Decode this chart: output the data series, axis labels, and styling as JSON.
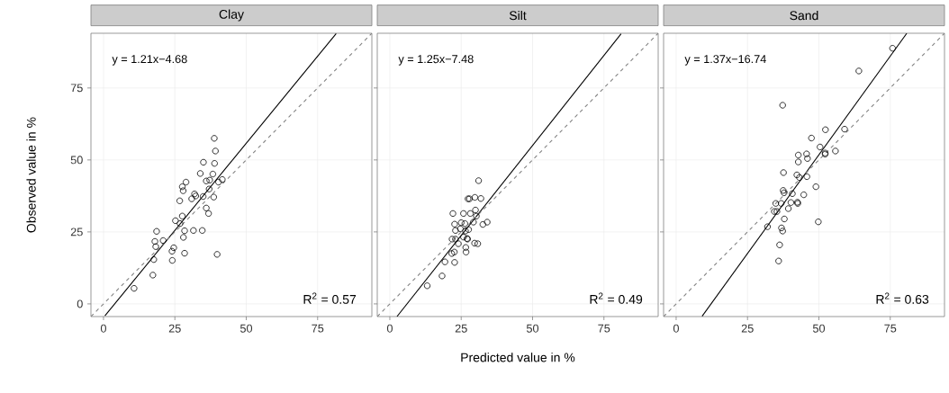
{
  "chart_data": [
    {
      "type": "scatter",
      "title": "Clay",
      "ylabel": "Observed value in %",
      "xlim": [
        -4.4,
        94
      ],
      "ylim": [
        -4.4,
        94
      ],
      "xticks": [
        0,
        25,
        50,
        75
      ],
      "yticks": [
        0,
        25,
        50,
        75
      ],
      "grid": true,
      "annotations": [
        "y = 1.21x−4.68",
        "R$^{2}$ = 0.57"
      ],
      "series": [
        {
          "marker": "circle",
          "color": "#000000",
          "x": [
            38.8,
            39.2,
            35.0,
            38.9,
            33.9,
            38.3,
            36.0,
            37.2,
            40.3,
            41.6,
            28.9,
            27.6,
            27.9,
            31.9,
            32.3,
            30.9,
            34.9,
            37.0,
            38.6,
            26.7,
            36.0,
            36.8,
            27.6,
            25.2,
            26.8,
            18.6,
            28.4,
            31.5,
            34.6,
            20.9,
            18.0,
            18.3,
            28.0,
            24.6,
            24.0,
            28.4,
            39.8,
            17.6,
            24.1,
            17.3,
            10.7
          ],
          "values": [
            57.5,
            53.1,
            49.2,
            48.8,
            45.3,
            45.1,
            42.7,
            43.0,
            42.3,
            43.2,
            42.3,
            40.7,
            39.3,
            38.2,
            37.5,
            36.5,
            37.3,
            39.9,
            37.1,
            35.8,
            33.3,
            31.4,
            30.5,
            28.9,
            27.9,
            25.2,
            25.4,
            25.5,
            25.5,
            22.0,
            21.7,
            19.9,
            23.1,
            19.5,
            18.3,
            17.6,
            17.2,
            15.4,
            15.1,
            10.0,
            5.4
          ]
        },
        {
          "type": "line",
          "marker": "none",
          "line_style": "solid",
          "color": "#000000",
          "x": [
            0.5,
            81.5
          ],
          "values": [
            -4.1,
            93.9
          ]
        },
        {
          "type": "line",
          "marker": "none",
          "line_style": "dashed",
          "color": "#808080",
          "x": [
            -4.4,
            94
          ],
          "values": [
            -4.4,
            94
          ]
        }
      ]
    },
    {
      "type": "scatter",
      "title": "Silt",
      "xlabel": "Predicted value in %",
      "xlim": [
        -4.4,
        94
      ],
      "ylim": [
        -4.4,
        94
      ],
      "xticks": [
        0,
        25,
        50,
        75
      ],
      "yticks": [
        0,
        25,
        50,
        75
      ],
      "grid": true,
      "tick_labels": "x",
      "annotations": [
        "y = 1.25x−7.48",
        "R$^{2}$ = 0.49"
      ],
      "series": [
        {
          "marker": "circle",
          "color": "#000000",
          "x": [
            31.1,
            27.4,
            27.9,
            29.8,
            31.9,
            30.0,
            22.1,
            25.8,
            28.2,
            30.3,
            22.7,
            25.0,
            26.3,
            29.3,
            34.1,
            32.6,
            23.0,
            24.7,
            27.6,
            26.5,
            21.8,
            23.0,
            27.1,
            25.8,
            24.0,
            27.2,
            29.7,
            30.8,
            26.6,
            26.7,
            22.6,
            21.7,
            19.3,
            22.7,
            18.3,
            13.1
          ],
          "values": [
            42.8,
            36.5,
            36.5,
            37.0,
            36.6,
            32.6,
            31.4,
            31.4,
            31.4,
            30.5,
            27.7,
            28.2,
            27.9,
            28.4,
            28.4,
            27.6,
            25.5,
            26.1,
            25.8,
            25.3,
            22.5,
            22.5,
            22.7,
            23.2,
            20.9,
            22.5,
            21.1,
            20.9,
            19.6,
            18.0,
            18.0,
            17.5,
            14.6,
            14.4,
            9.7,
            6.3
          ]
        },
        {
          "type": "line",
          "marker": "none",
          "line_style": "solid",
          "color": "#000000",
          "x": [
            2.5,
            81
          ],
          "values": [
            -4.4,
            93.8
          ]
        },
        {
          "type": "line",
          "marker": "none",
          "line_style": "dashed",
          "color": "#808080",
          "x": [
            -4.4,
            94
          ],
          "values": [
            -4.4,
            94
          ]
        }
      ]
    },
    {
      "type": "scatter",
      "title": "Sand",
      "xlim": [
        -4.4,
        94
      ],
      "ylim": [
        -4.4,
        94
      ],
      "xticks": [
        0,
        25,
        50,
        75
      ],
      "yticks": [
        0,
        25,
        50,
        75
      ],
      "grid": true,
      "tick_labels": "x",
      "annotations": [
        "y = 1.37x−16.74",
        "R$^{2}$ = 0.63"
      ],
      "series": [
        {
          "marker": "circle",
          "color": "#000000",
          "x": [
            75.8,
            64.0,
            37.3,
            52.3,
            59.0,
            47.4,
            50.4,
            55.8,
            52.2,
            52.2,
            42.8,
            45.7,
            46.0,
            42.8,
            37.6,
            42.3,
            43.2,
            45.8,
            48.96,
            37.5,
            37.8,
            40.7,
            44.7,
            34.9,
            36.8,
            40.2,
            42.5,
            42.6,
            34.4,
            35.3,
            39.3,
            37.9,
            32.0,
            36.9,
            37.3,
            49.8,
            36.25,
            35.9
          ],
          "values": [
            88.8,
            80.9,
            69.0,
            60.5,
            60.7,
            57.6,
            54.5,
            53.1,
            52.4,
            52.0,
            51.7,
            52.1,
            50.5,
            49.3,
            45.6,
            44.8,
            43.9,
            44.2,
            40.7,
            39.4,
            38.6,
            38.3,
            37.9,
            34.9,
            34.9,
            35.2,
            35.3,
            34.9,
            32.1,
            32.1,
            33.1,
            29.5,
            26.8,
            26.4,
            25.3,
            28.5,
            20.5,
            14.9
          ]
        },
        {
          "type": "line",
          "marker": "none",
          "line_style": "solid",
          "color": "#000000",
          "x": [
            9.1,
            80.8
          ],
          "values": [
            -4.3,
            94.0
          ]
        },
        {
          "type": "line",
          "marker": "none",
          "line_style": "dashed",
          "color": "#808080",
          "x": [
            -4.4,
            94
          ],
          "values": [
            -4.4,
            94
          ]
        }
      ]
    }
  ]
}
